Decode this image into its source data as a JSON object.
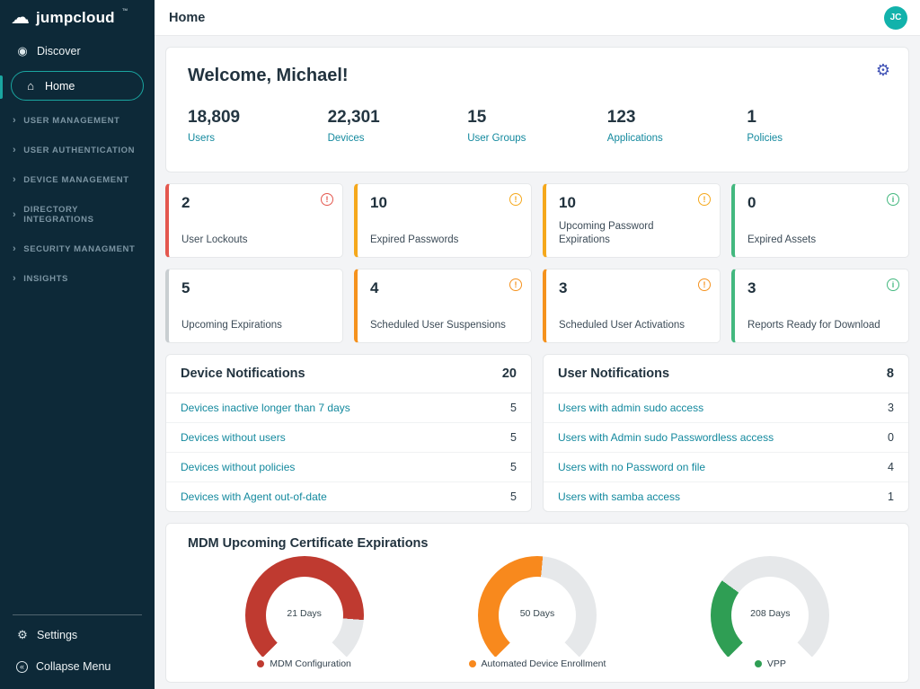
{
  "sidebar": {
    "logo": {
      "text": "jumpcloud",
      "tm": "™"
    },
    "discover_label": "Discover",
    "home_label": "Home",
    "sections": [
      "USER MANAGEMENT",
      "USER AUTHENTICATION",
      "DEVICE MANAGEMENT",
      "DIRECTORY INTEGRATIONS",
      "SECURITY MANAGMENT",
      "INSIGHTS"
    ],
    "settings_label": "Settings",
    "collapse_label": "Collapse Menu"
  },
  "topbar": {
    "title": "Home",
    "avatar_initials": "JC"
  },
  "welcome": {
    "heading": "Welcome, Michael!",
    "stats": [
      {
        "value": "18,809",
        "label": "Users"
      },
      {
        "value": "22,301",
        "label": "Devices"
      },
      {
        "value": "15",
        "label": "User Groups"
      },
      {
        "value": "123",
        "label": "Applications"
      },
      {
        "value": "1",
        "label": "Policies"
      }
    ]
  },
  "cards_row1": [
    {
      "value": "2",
      "label": "User Lockouts",
      "accent": "#e4574e",
      "icon": "!"
    },
    {
      "value": "10",
      "label": "Expired Passwords",
      "accent": "#f5a81c",
      "icon": "!"
    },
    {
      "value": "10",
      "label": "Upcoming Password Expirations",
      "accent": "#f5a81c",
      "icon": "!"
    },
    {
      "value": "0",
      "label": "Expired Assets",
      "accent": "#43b87f",
      "icon": "i"
    }
  ],
  "cards_row2": [
    {
      "value": "5",
      "label": "Upcoming Expirations",
      "accent": "#c9ced1",
      "icon": ""
    },
    {
      "value": "4",
      "label": "Scheduled User Suspensions",
      "accent": "#f5921e",
      "icon": "!"
    },
    {
      "value": "3",
      "label": "Scheduled User Activations",
      "accent": "#f5921e",
      "icon": "!"
    },
    {
      "value": "3",
      "label": "Reports Ready for Download",
      "accent": "#43b87f",
      "icon": "i"
    }
  ],
  "device_notifications": {
    "title": "Device Notifications",
    "count": "20",
    "rows": [
      {
        "label": "Devices inactive longer than 7 days",
        "value": "5"
      },
      {
        "label": "Devices without users",
        "value": "5"
      },
      {
        "label": "Devices without policies",
        "value": "5"
      },
      {
        "label": "Devices with Agent out-of-date",
        "value": "5"
      }
    ]
  },
  "user_notifications": {
    "title": "User Notifications",
    "count": "8",
    "rows": [
      {
        "label": "Users with admin sudo access",
        "value": "3"
      },
      {
        "label": "Users with Admin sudo Passwordless access",
        "value": "0"
      },
      {
        "label": "Users with no Password on file",
        "value": "4"
      },
      {
        "label": "Users with samba access",
        "value": "1"
      }
    ]
  },
  "mdm": {
    "title": "MDM Upcoming Certificate Expirations",
    "track_color": "#e6e8ea",
    "gauges": [
      {
        "label": "21 Days",
        "legend": "MDM Configuration",
        "color": "#bf3a30",
        "fill": 0.85
      },
      {
        "label": "50 Days",
        "legend": "Automated Device Enrollment",
        "color": "#f8891d",
        "fill": 0.52
      },
      {
        "label": "208 Days",
        "legend": "VPP",
        "color": "#2f9e54",
        "fill": 0.3
      }
    ]
  }
}
